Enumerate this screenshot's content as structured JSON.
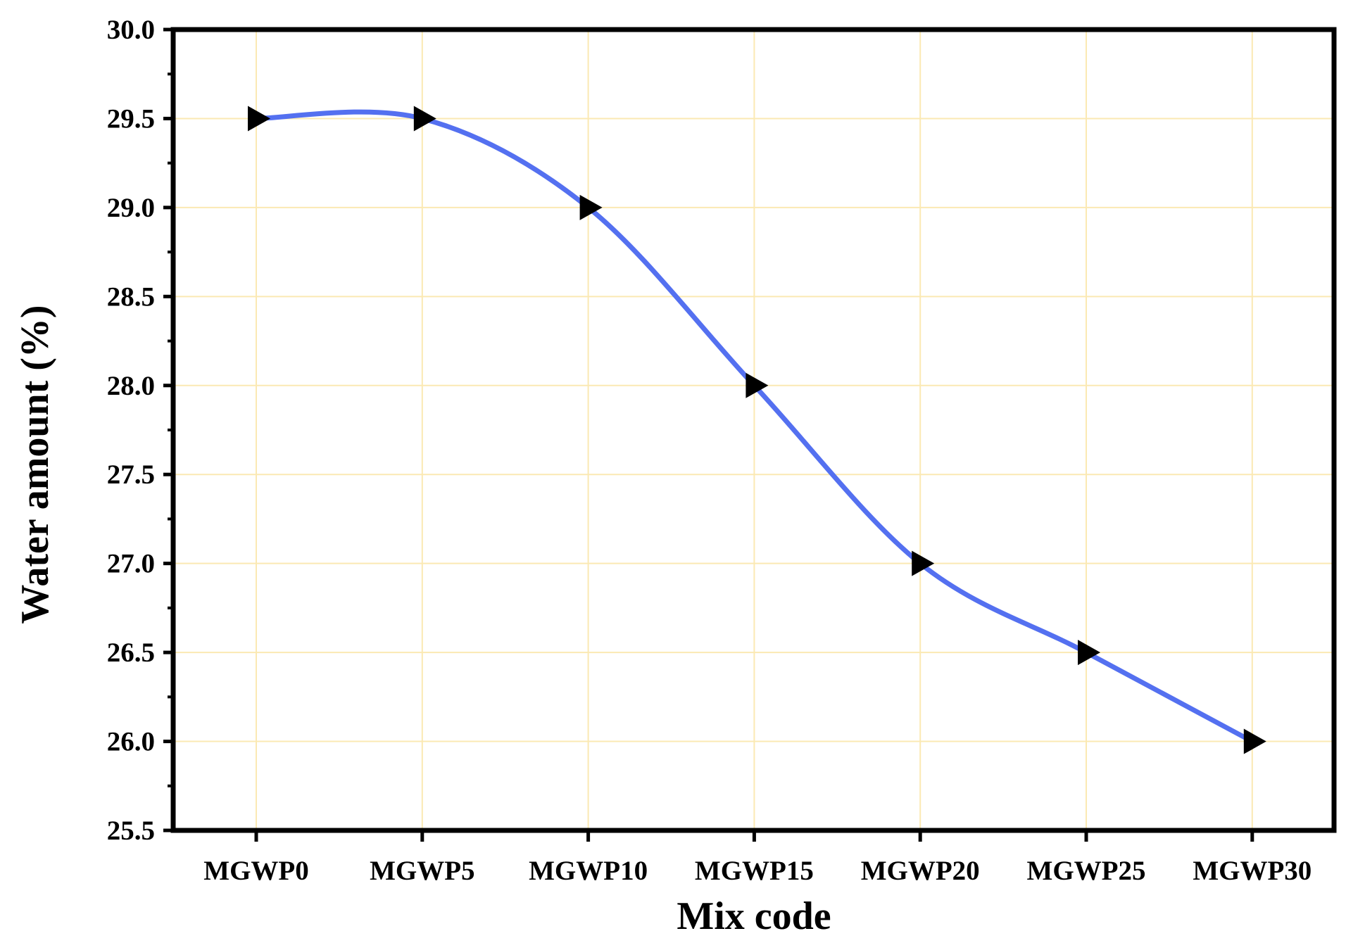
{
  "chart_data": {
    "type": "line",
    "categories": [
      "MGWP0",
      "MGWP5",
      "MGWP10",
      "MGWP15",
      "MGWP20",
      "MGWP25",
      "MGWP30"
    ],
    "series": [
      {
        "values": [
          29.5,
          29.5,
          29.0,
          28.0,
          27.0,
          26.5,
          26.0
        ]
      }
    ],
    "xlabel": "Mix code",
    "ylabel": "Water amount (%)",
    "ylim": [
      25.5,
      30.0
    ],
    "yticks": [
      "25.5",
      "26.0",
      "26.5",
      "27.0",
      "27.5",
      "28.0",
      "28.5",
      "29.0",
      "29.5",
      "30.0"
    ],
    "grid": true,
    "smoothed": true,
    "marker": "right-pointing triangle",
    "line_color": "#5470f0",
    "marker_color": "#000000",
    "grid_color": "#fbe9b3"
  }
}
